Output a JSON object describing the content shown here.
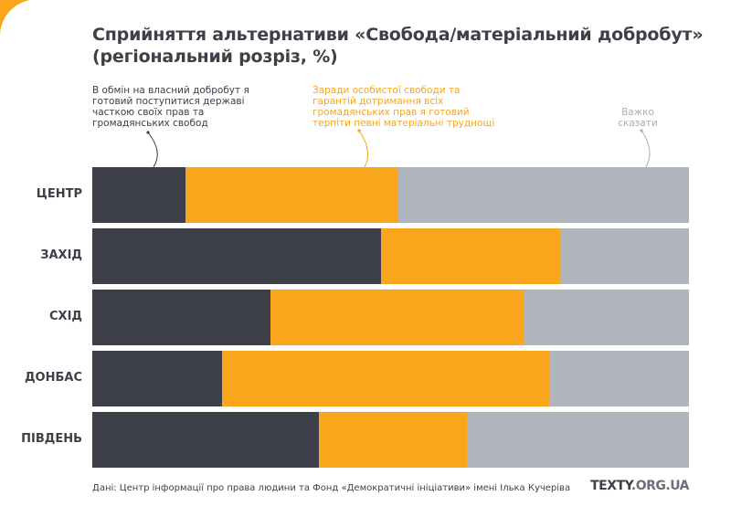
{
  "header": {
    "title_line1": "Сприйняття альтернативи «Свобода/матеріальний добробут»",
    "title_line2": "(регіональний розріз, %)"
  },
  "annotations": {
    "dark": "В обмін на власний добробут я\nготовий поступитися державі\nчасткою своїх прав та\nгромадянських свобод",
    "orange": "Заради особистої свободи та\nгарантій дотримання всіх\nгромадянських прав я готовий\nтерпіти певні матеріальні труднощі",
    "gray": "Важко\nсказати"
  },
  "footer": {
    "source": "Дані: Центр інформації про права людини та Фонд «Демократичні ініціативи» імені Ілька Кучеріва",
    "brand_part1": "TEXTY",
    "brand_part2": ".ORG.UA"
  },
  "colors": {
    "dark": "#3d4049",
    "orange": "#f9a61c",
    "gray": "#b0b4bc",
    "accent": "#f9a61c"
  },
  "chart_data": {
    "type": "bar",
    "orientation": "horizontal",
    "stacked": true,
    "title": "Сприйняття альтернативи «Свобода/матеріальний добробут» (регіональний розріз, %)",
    "xlabel": "",
    "ylabel": "",
    "xlim": [
      0,
      100
    ],
    "grid": false,
    "legend": "top (annotations with arrows)",
    "categories": [
      "ЦЕНТР",
      "ЗАХІД",
      "СХІД",
      "ДОНБАС",
      "ПІВДЕНЬ"
    ],
    "series": [
      {
        "name": "В обмін на власний добробут я готовий поступитися державі часткою своїх прав та громадянських свобод",
        "color": "#3d4049",
        "values": [
          15.6,
          48.4,
          29.9,
          21.7,
          38.0
        ]
      },
      {
        "name": "Заради особистої свободи та гарантій дотримання всіх громадянських прав я готовий терпіти певні матеріальні труднощі",
        "color": "#f9a61c",
        "values": [
          35.7,
          30.0,
          42.4,
          54.8,
          24.8
        ]
      },
      {
        "name": "Важко сказати",
        "color": "#b0b4bc",
        "values": [
          48.7,
          21.6,
          27.7,
          23.5,
          37.2
        ]
      }
    ]
  }
}
